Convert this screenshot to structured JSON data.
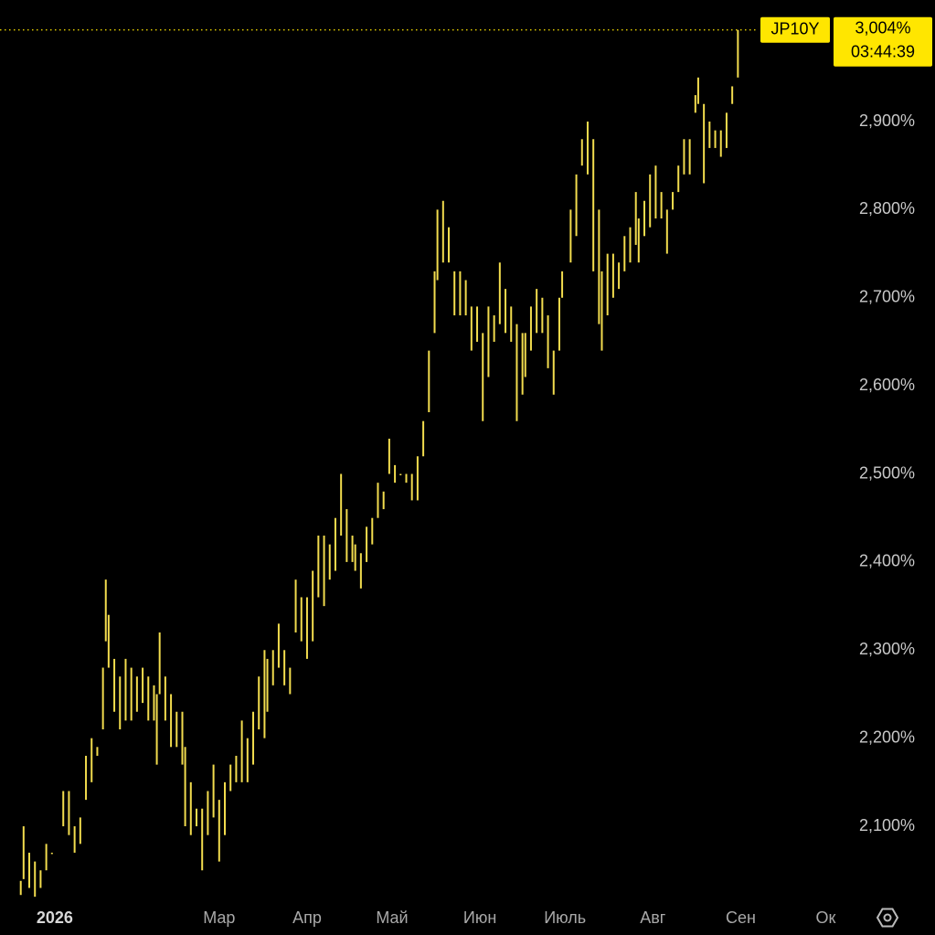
{
  "chart_data": {
    "type": "ohlc",
    "symbol": "JP10Y",
    "time": "03:44:39",
    "color": "#f2dc4e",
    "tag_color": "#ffe600",
    "last": {
      "value": 3.004,
      "label": "3,004%"
    },
    "x": [
      -12,
      -11,
      -9,
      -7,
      -5,
      -3,
      -1,
      3,
      5,
      7,
      9,
      11,
      13,
      15,
      17,
      18,
      19,
      21,
      23,
      25,
      27,
      29,
      31,
      33,
      35,
      36,
      37,
      39,
      41,
      43,
      45,
      46,
      48,
      50,
      52,
      54,
      56,
      58,
      60,
      62,
      64,
      66,
      68,
      70,
      72,
      74,
      75,
      77,
      79,
      81,
      83,
      85,
      87,
      89,
      91,
      93,
      95,
      97,
      99,
      101,
      103,
      105,
      106,
      108,
      110,
      112,
      114,
      116,
      118,
      120,
      122,
      124,
      126,
      128,
      130,
      132,
      134,
      135,
      137,
      139,
      141,
      143,
      145,
      147,
      149,
      151,
      153,
      155,
      157,
      159,
      161,
      163,
      165,
      166,
      168,
      170,
      172,
      174,
      176,
      178,
      179,
      182,
      184,
      186,
      188,
      190,
      192,
      193,
      195,
      197,
      199,
      201,
      203,
      205,
      206,
      208,
      210,
      212,
      214,
      216,
      218,
      220,
      222,
      224,
      226,
      227,
      229,
      231,
      233,
      235,
      237,
      239,
      241
    ],
    "high": [
      2.038,
      2.1,
      2.07,
      2.06,
      2.05,
      2.08,
      2.07,
      2.14,
      2.14,
      2.1,
      2.11,
      2.18,
      2.2,
      2.19,
      2.28,
      2.38,
      2.34,
      2.29,
      2.27,
      2.29,
      2.28,
      2.27,
      2.28,
      2.27,
      2.26,
      2.25,
      2.32,
      2.27,
      2.25,
      2.23,
      2.23,
      2.19,
      2.15,
      2.12,
      2.12,
      2.14,
      2.17,
      2.13,
      2.15,
      2.17,
      2.18,
      2.22,
      2.2,
      2.23,
      2.27,
      2.3,
      2.29,
      2.3,
      2.33,
      2.3,
      2.28,
      2.38,
      2.36,
      2.36,
      2.39,
      2.43,
      2.43,
      2.42,
      2.45,
      2.5,
      2.46,
      2.43,
      2.42,
      2.41,
      2.44,
      2.45,
      2.49,
      2.48,
      2.54,
      2.51,
      2.5,
      2.5,
      2.5,
      2.52,
      2.56,
      2.64,
      2.73,
      2.8,
      2.81,
      2.78,
      2.73,
      2.73,
      2.72,
      2.69,
      2.69,
      2.66,
      2.69,
      2.68,
      2.74,
      2.71,
      2.69,
      2.67,
      2.66,
      2.66,
      2.69,
      2.71,
      2.7,
      2.68,
      2.64,
      2.7,
      2.73,
      2.8,
      2.84,
      2.88,
      2.9,
      2.88,
      2.8,
      2.73,
      2.75,
      2.75,
      2.74,
      2.77,
      2.78,
      2.82,
      2.79,
      2.81,
      2.84,
      2.85,
      2.82,
      2.8,
      2.82,
      2.85,
      2.88,
      2.88,
      2.93,
      2.95,
      2.92,
      2.9,
      2.89,
      2.89,
      2.91,
      2.94,
      3.004
    ],
    "low": [
      2.022,
      2.04,
      2.03,
      2.02,
      2.03,
      2.05,
      2.07,
      2.1,
      2.09,
      2.07,
      2.08,
      2.13,
      2.15,
      2.18,
      2.21,
      2.31,
      2.28,
      2.23,
      2.21,
      2.22,
      2.22,
      2.23,
      2.24,
      2.22,
      2.22,
      2.17,
      2.25,
      2.22,
      2.19,
      2.19,
      2.17,
      2.1,
      2.09,
      2.1,
      2.05,
      2.09,
      2.11,
      2.06,
      2.09,
      2.14,
      2.15,
      2.15,
      2.15,
      2.17,
      2.21,
      2.2,
      2.23,
      2.26,
      2.28,
      2.26,
      2.25,
      2.32,
      2.31,
      2.29,
      2.31,
      2.36,
      2.35,
      2.38,
      2.39,
      2.43,
      2.4,
      2.4,
      2.39,
      2.37,
      2.4,
      2.42,
      2.45,
      2.46,
      2.5,
      2.49,
      2.5,
      2.49,
      2.47,
      2.47,
      2.52,
      2.57,
      2.66,
      2.72,
      2.74,
      2.74,
      2.68,
      2.68,
      2.68,
      2.64,
      2.65,
      2.56,
      2.61,
      2.65,
      2.67,
      2.66,
      2.65,
      2.56,
      2.59,
      2.61,
      2.64,
      2.66,
      2.66,
      2.62,
      2.59,
      2.64,
      2.7,
      2.74,
      2.77,
      2.85,
      2.84,
      2.73,
      2.67,
      2.64,
      2.68,
      2.7,
      2.71,
      2.73,
      2.74,
      2.76,
      2.74,
      2.77,
      2.78,
      2.79,
      2.79,
      2.75,
      2.8,
      2.82,
      2.84,
      2.84,
      2.91,
      2.92,
      2.83,
      2.87,
      2.87,
      2.86,
      2.87,
      2.92,
      2.95
    ],
    "xlim": [
      -19,
      277
    ],
    "ylim": [
      2.016,
      3.038
    ],
    "xticks": [
      {
        "value": 0,
        "label": "2026"
      },
      {
        "value": 58,
        "label": "Мар"
      },
      {
        "value": 89,
        "label": "Апр"
      },
      {
        "value": 119,
        "label": "Май"
      },
      {
        "value": 150,
        "label": "Июн"
      },
      {
        "value": 180,
        "label": "Июль"
      },
      {
        "value": 211,
        "label": "Авг"
      },
      {
        "value": 242,
        "label": "Сен"
      },
      {
        "value": 272,
        "label": "Ок"
      }
    ],
    "yticks": [
      {
        "value": 2.1,
        "label": "2,100%"
      },
      {
        "value": 2.2,
        "label": "2,200%"
      },
      {
        "value": 2.3,
        "label": "2,300%"
      },
      {
        "value": 2.4,
        "label": "2,400%"
      },
      {
        "value": 2.5,
        "label": "2,500%"
      },
      {
        "value": 2.6,
        "label": "2,600%"
      },
      {
        "value": 2.7,
        "label": "2,700%"
      },
      {
        "value": 2.8,
        "label": "2,800%"
      },
      {
        "value": 2.9,
        "label": "2,900%"
      }
    ]
  }
}
